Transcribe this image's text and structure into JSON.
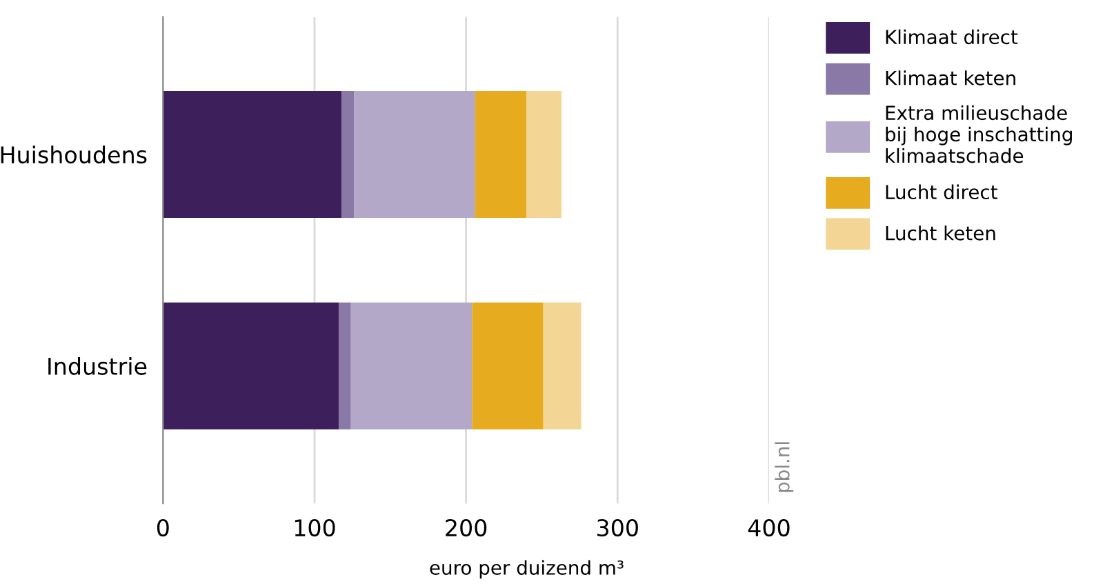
{
  "chart_data": {
    "type": "bar",
    "orientation": "horizontal",
    "stacked": true,
    "categories": [
      "Huishoudens",
      "Industrie"
    ],
    "series": [
      {
        "name": "Klimaat direct",
        "color": "#3d1f5c",
        "values": [
          118,
          116
        ]
      },
      {
        "name": "Klimaat keten",
        "color": "#8a78a6",
        "values": [
          8,
          8
        ]
      },
      {
        "name": "Extra milieuschade\nbij hoge inschatting\nklimaatschade",
        "color": "#b3a8c8",
        "values": [
          80,
          80
        ]
      },
      {
        "name": "Lucht direct",
        "color": "#e6ab1e",
        "values": [
          34,
          47
        ]
      },
      {
        "name": "Lucht keten",
        "color": "#f3d595",
        "values": [
          23,
          25
        ]
      }
    ],
    "xlim": [
      0,
      400
    ],
    "xticks": [
      0,
      100,
      200,
      300,
      400
    ],
    "xlabel": "euro per duizend m³",
    "grid": "x",
    "legend": "right",
    "annotations": [
      "pbl.nl"
    ]
  }
}
